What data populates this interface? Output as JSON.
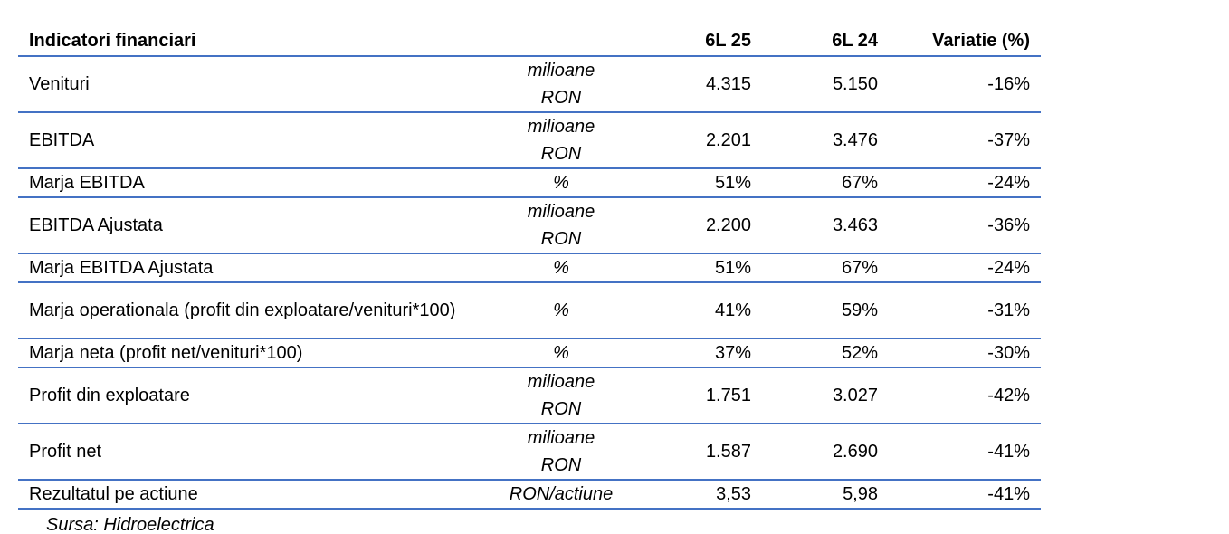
{
  "table": {
    "headers": [
      "Indicatori financiari",
      "",
      "6L 25",
      "6L 24",
      "Variatie (%)"
    ],
    "rows": [
      {
        "label": "Venituri",
        "unit": [
          "milioane",
          "RON"
        ],
        "v25": "4.315",
        "v24": "5.150",
        "var": "-16%"
      },
      {
        "label": "EBITDA",
        "unit": [
          "milioane",
          "RON"
        ],
        "v25": "2.201",
        "v24": "3.476",
        "var": "-37%"
      },
      {
        "label": "Marja EBITDA",
        "unit": [
          "%"
        ],
        "v25": "51%",
        "v24": "67%",
        "var": "-24%"
      },
      {
        "label": "EBITDA Ajustata",
        "unit": [
          "milioane",
          "RON"
        ],
        "v25": "2.200",
        "v24": "3.463",
        "var": "-36%"
      },
      {
        "label": "Marja EBITDA Ajustata",
        "unit": [
          "%"
        ],
        "v25": "51%",
        "v24": "67%",
        "var": "-24%"
      },
      {
        "label": "Marja operationala (profit din exploatare/venituri*100)",
        "unit": [
          "%"
        ],
        "v25": "41%",
        "v24": "59%",
        "var": "-31%"
      },
      {
        "label": "Marja neta (profit net/venituri*100)",
        "unit": [
          "%"
        ],
        "v25": "37%",
        "v24": "52%",
        "var": "-30%"
      },
      {
        "label": "Profit din exploatare",
        "unit": [
          "milioane",
          "RON"
        ],
        "v25": "1.751",
        "v24": "3.027",
        "var": "-42%"
      },
      {
        "label": "Profit net",
        "unit": [
          "milioane",
          "RON"
        ],
        "v25": "1.587",
        "v24": "2.690",
        "var": "-41%"
      },
      {
        "label": "Rezultatul pe actiune",
        "unit": [
          "RON/actiune"
        ],
        "v25": "3,53",
        "v24": "5,98",
        "var": "-41%"
      }
    ]
  },
  "source": "Sursa: Hidroelectrica",
  "colors": {
    "rule": "#4472c4"
  }
}
